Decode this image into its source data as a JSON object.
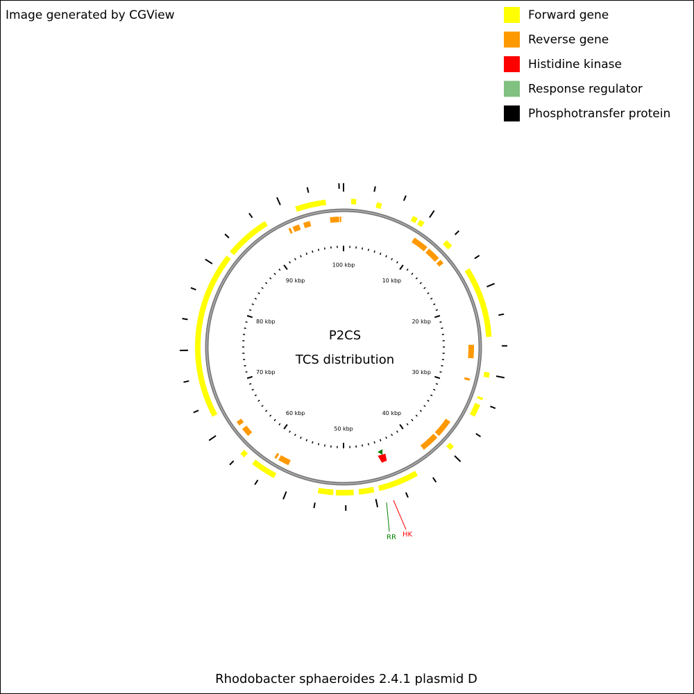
{
  "header": {
    "credit": "Image generated by CGView"
  },
  "legend": [
    {
      "label": "Forward gene",
      "color": "#ffff00"
    },
    {
      "label": "Reverse gene",
      "color": "#ff9900"
    },
    {
      "label": "Histidine kinase",
      "color": "#ff0000"
    },
    {
      "label": "Response regulator",
      "color": "#80c080"
    },
    {
      "label": "Phosphotransfer protein",
      "color": "#000000"
    }
  ],
  "map": {
    "title": "P2CS",
    "subtitle": "TCS distribution",
    "scale_labels": [
      "10 kbp",
      "20 kbp",
      "30 kbp",
      "40 kbp",
      "50 kbp",
      "60 kbp",
      "70 kbp",
      "80 kbp",
      "90 kbp",
      "100 kbp"
    ],
    "feature_labels": [
      "RR",
      "HK"
    ]
  },
  "footer": {
    "caption": "Rhodobacter sphaeroides 2.4.1 plasmid D"
  }
}
